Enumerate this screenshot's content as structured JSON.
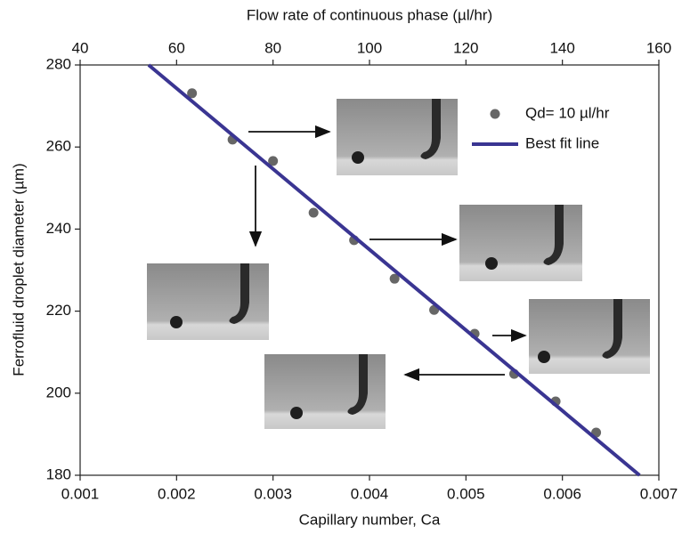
{
  "chart_data": {
    "type": "scatter",
    "title": "Flow rate of continuous phase (µl/hr)",
    "x_label": "Capillary number, Ca",
    "y_label": "Ferrofluid droplet diameter (µm)",
    "xlim": [
      0.001,
      0.007
    ],
    "xticks": [
      0.001,
      0.002,
      0.003,
      0.004,
      0.005,
      0.006,
      0.007
    ],
    "x2lim": [
      40,
      160
    ],
    "x2ticks": [
      40,
      60,
      80,
      100,
      120,
      140,
      160
    ],
    "ylim": [
      180,
      280
    ],
    "yticks": [
      180,
      200,
      220,
      240,
      260,
      280
    ],
    "series": [
      {
        "name": "Qd= 10 µl/hr",
        "color": "#666666",
        "marker": "circle",
        "x": [
          0.00216,
          0.00258,
          0.003,
          0.00342,
          0.00384,
          0.00426,
          0.00467,
          0.00509,
          0.0055,
          0.00593,
          0.00635
        ],
        "values": [
          273.1,
          261.8,
          256.6,
          244.0,
          237.3,
          227.9,
          220.3,
          214.5,
          204.7,
          198.0,
          190.4
        ]
      },
      {
        "name": "Best fit line",
        "color": "#3a3592",
        "marker": "line",
        "x": [
          0.00171,
          0.0068
        ],
        "values": [
          280,
          180
        ]
      }
    ]
  }
}
